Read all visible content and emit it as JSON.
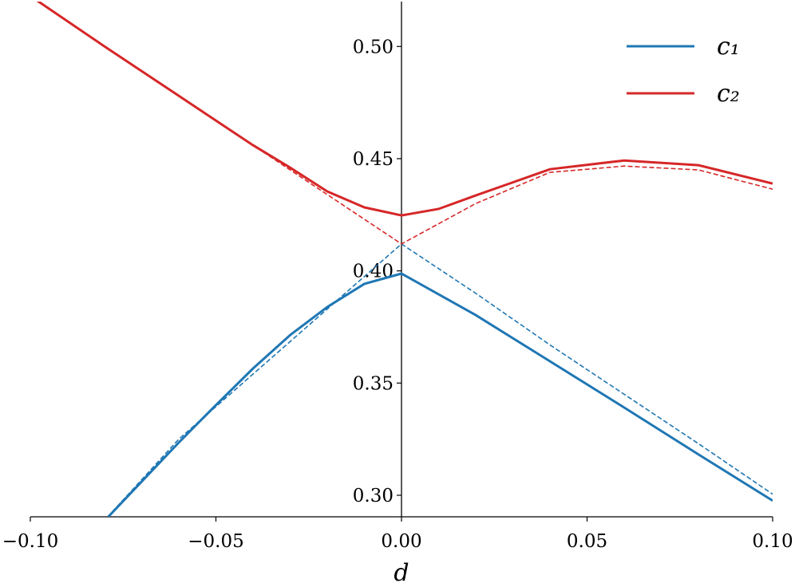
{
  "chart_data": {
    "type": "line",
    "xlabel": "d",
    "xlim": [
      -0.1,
      0.1
    ],
    "ylim": [
      0.2904,
      0.52
    ],
    "xticks": [
      {
        "value": -0.1,
        "label": "−0.10"
      },
      {
        "value": -0.05,
        "label": "−0.05"
      },
      {
        "value": 0,
        "label": "0.00"
      },
      {
        "value": 0.05,
        "label": "0.05"
      },
      {
        "value": 0.1,
        "label": "0.10"
      }
    ],
    "yticks": [
      {
        "value": 0.3,
        "label": "0.30"
      },
      {
        "value": 0.35,
        "label": "0.35"
      },
      {
        "value": 0.4,
        "label": "0.40"
      },
      {
        "value": 0.45,
        "label": "0.45"
      },
      {
        "value": 0.5,
        "label": "0.50"
      }
    ],
    "legend": "upper right",
    "series": [
      {
        "name": "c₁",
        "color": "#1f77b4",
        "dashed": false,
        "x": [
          -0.079,
          -0.07,
          -0.06,
          -0.05,
          -0.04,
          -0.03,
          -0.02,
          -0.01,
          0,
          0.02,
          0.04,
          0.06,
          0.08,
          0.1
        ],
        "values": [
          0.2904,
          0.3061,
          0.3235,
          0.3402,
          0.3565,
          0.3714,
          0.3839,
          0.3942,
          0.3988,
          0.3803,
          0.3597,
          0.3391,
          0.3182,
          0.2976
        ]
      },
      {
        "name": "c₂",
        "color": "#d62728",
        "dashed": false,
        "x": [
          -0.1,
          -0.08,
          -0.06,
          -0.04,
          -0.03,
          -0.02,
          -0.01,
          0,
          0.01,
          0.02,
          0.04,
          0.06,
          0.08,
          0.1
        ],
        "values": [
          0.5225,
          0.5,
          0.478,
          0.456,
          0.446,
          0.4354,
          0.4283,
          0.4247,
          0.4276,
          0.4336,
          0.4453,
          0.4492,
          0.4471,
          0.4389
        ]
      },
      {
        "color": "#1f77b4",
        "dashed": true,
        "x": [
          -0.078,
          -0.06,
          -0.04,
          -0.02,
          -0.01,
          0,
          0.02,
          0.04,
          0.06,
          0.08,
          0.1
        ],
        "values": [
          0.2925,
          0.325,
          0.354,
          0.383,
          0.3975,
          0.412,
          0.39,
          0.367,
          0.345,
          0.323,
          0.3005
        ]
      },
      {
        "color": "#d62728",
        "dashed": true,
        "x": [
          -0.1,
          -0.08,
          -0.06,
          -0.04,
          -0.02,
          -0.01,
          0,
          0.01,
          0.02,
          0.04,
          0.06,
          0.08,
          0.1
        ],
        "values": [
          0.5225,
          0.5,
          0.478,
          0.456,
          0.434,
          0.423,
          0.412,
          0.421,
          0.43,
          0.4439,
          0.4467,
          0.445,
          0.4364
        ]
      }
    ]
  }
}
